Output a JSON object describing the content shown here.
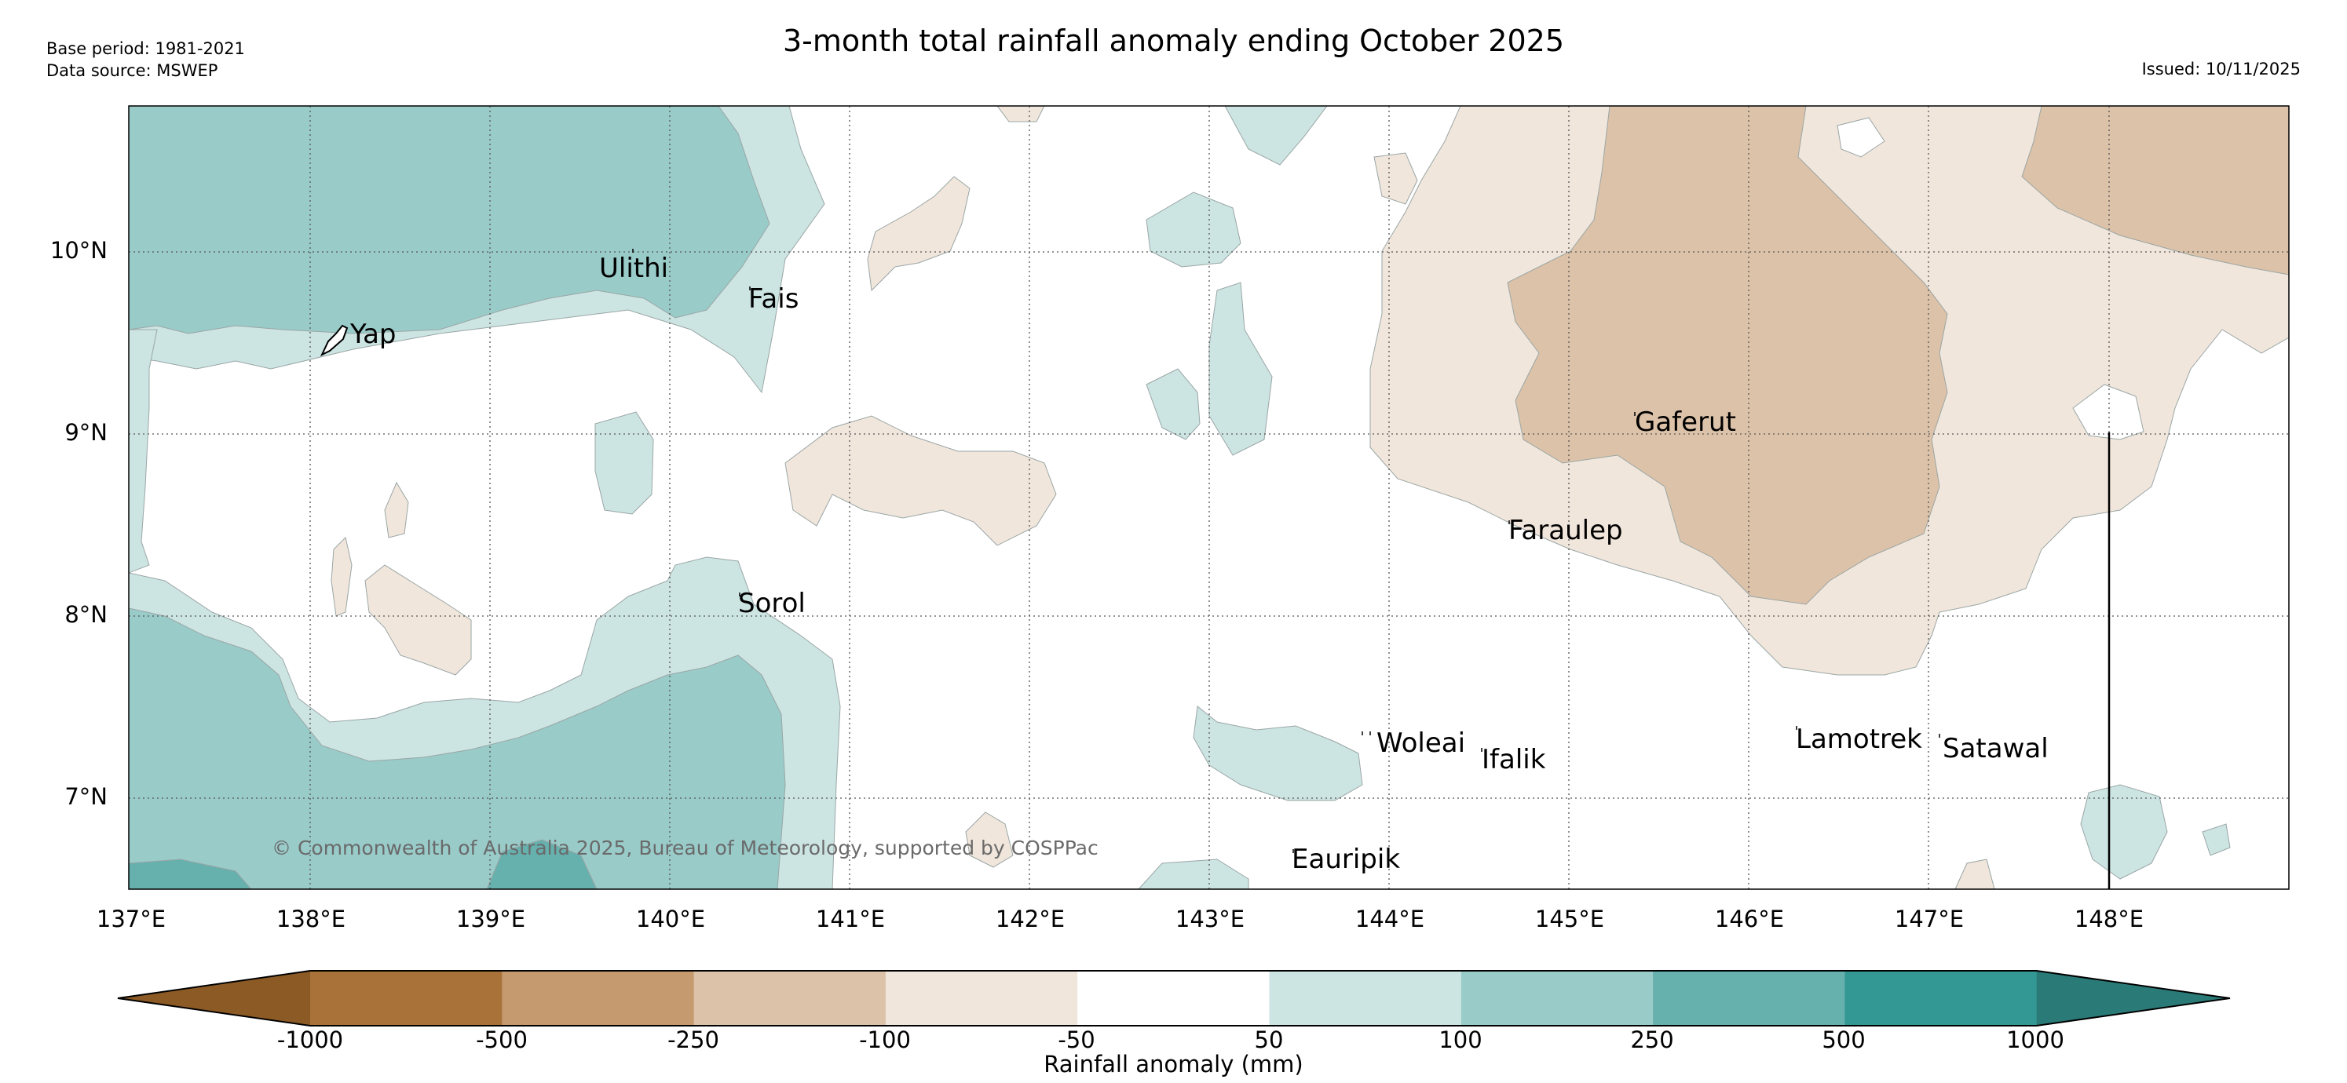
{
  "header": {
    "title": "3-month total rainfall anomaly ending October 2025",
    "base_period": "Base period: 1981-2021",
    "data_source": "Data source: MSWEP",
    "issued": "Issued: 10/11/2025"
  },
  "map": {
    "lat_labels": [
      "10°N",
      "9°N",
      "8°N",
      "7°N"
    ],
    "lon_labels": [
      "137°E",
      "138°E",
      "139°E",
      "140°E",
      "141°E",
      "142°E",
      "143°E",
      "144°E",
      "145°E",
      "146°E",
      "147°E",
      "148°E"
    ],
    "places": [
      "Yap",
      "Ulithi",
      "Fais",
      "Gaferut",
      "Faraulep",
      "Sorol",
      "Woleai",
      "Ifalik",
      "Lamotrek",
      "Satawal",
      "Eauripik"
    ],
    "copyright": "© Commonwealth of Australia 2025, Bureau of Meteorology, supported by COSPPac"
  },
  "colorbar": {
    "label": "Rainfall anomaly (mm)",
    "ticks": [
      "-1000",
      "-500",
      "-250",
      "-100",
      "-50",
      "50",
      "100",
      "250",
      "500",
      "1000"
    ],
    "colors": {
      "below_min": "#8c5a25",
      "b1": "#a97239",
      "b2": "#c49a6e",
      "b3": "#dcc2a8",
      "b4": "#f1e6dc",
      "b5": "#ffffff",
      "b6": "#cce5e3",
      "b7": "#99cbc9",
      "b8": "#66b0ae",
      "b9": "#339893",
      "above_max": "#2a7a77"
    }
  }
}
